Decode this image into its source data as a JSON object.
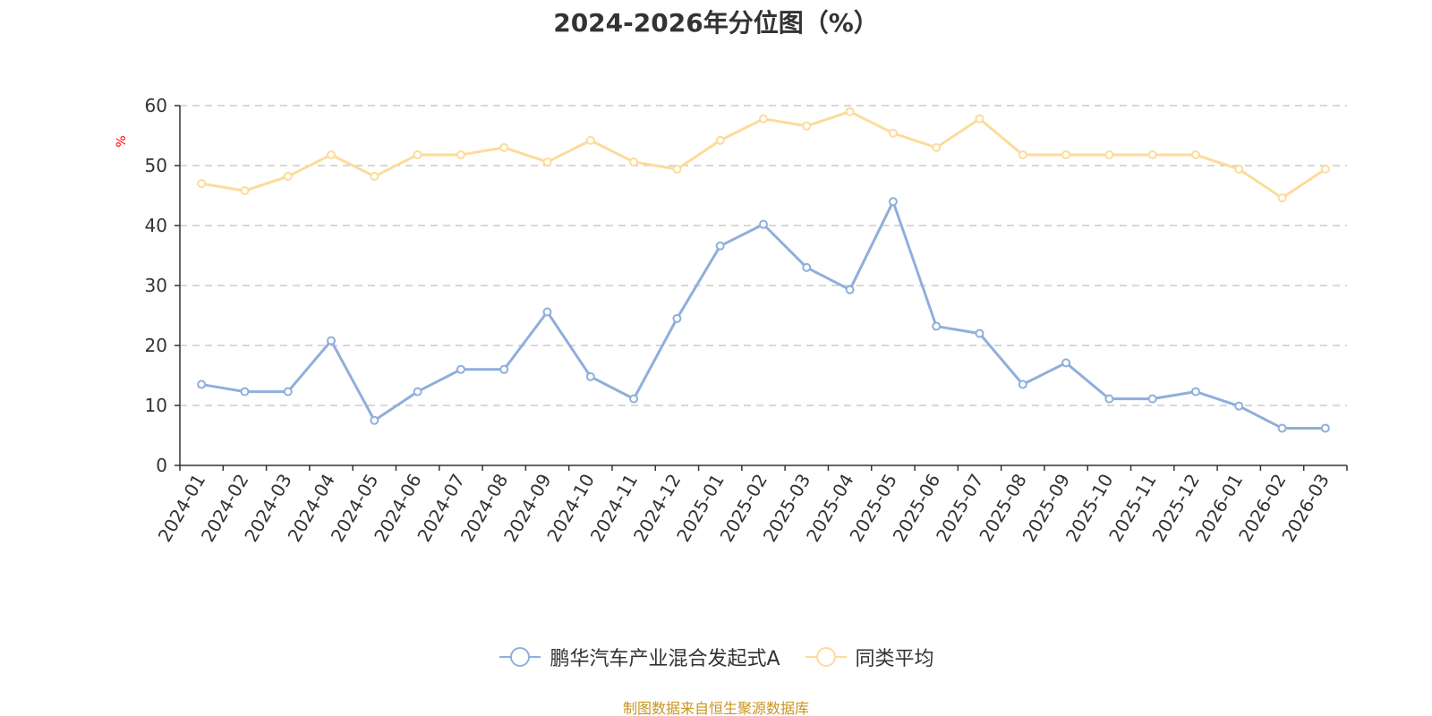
{
  "chart_data": {
    "type": "line",
    "title": "2024-2026年分位图（%）",
    "ylabel": "%",
    "ylim": [
      0,
      60
    ],
    "yticks": [
      0,
      10,
      20,
      30,
      40,
      50,
      60
    ],
    "grid": true,
    "legend_position": "bottom",
    "categories": [
      "2024-01",
      "2024-02",
      "2024-03",
      "2024-04",
      "2024-05",
      "2024-06",
      "2024-07",
      "2024-08",
      "2024-09",
      "2024-10",
      "2024-11",
      "2024-12",
      "2025-01",
      "2025-02",
      "2025-03",
      "2025-04",
      "2025-05",
      "2025-06",
      "2025-07",
      "2025-08",
      "2025-09",
      "2025-10",
      "2025-11",
      "2025-12",
      "2026-01",
      "2026-02",
      "2026-03"
    ],
    "series": [
      {
        "name": "鹏华汽车产业混合发起式A",
        "color": "#8fafdb",
        "values": [
          13.5,
          12.3,
          12.3,
          20.8,
          7.5,
          12.3,
          16.0,
          16.0,
          25.6,
          14.8,
          11.1,
          24.5,
          36.6,
          40.2,
          33.0,
          29.3,
          44.0,
          23.2,
          22.0,
          13.5,
          17.1,
          11.1,
          11.1,
          12.3,
          9.9,
          6.2,
          6.2
        ]
      },
      {
        "name": "同类平均",
        "color": "#fddb9a",
        "values": [
          47.0,
          45.8,
          48.2,
          51.8,
          48.2,
          51.8,
          51.8,
          53.0,
          50.6,
          54.2,
          50.6,
          49.4,
          54.2,
          57.8,
          56.6,
          59.0,
          55.4,
          53.0,
          57.8,
          51.8,
          51.8,
          51.8,
          51.8,
          51.8,
          49.4,
          44.6,
          49.4
        ]
      }
    ]
  },
  "source_text": "制图数据来自恒生聚源数据库",
  "colors": {
    "axis": "#333333",
    "grid": "#cccccc",
    "unit": "#ff0000",
    "source": "#c8961e"
  }
}
